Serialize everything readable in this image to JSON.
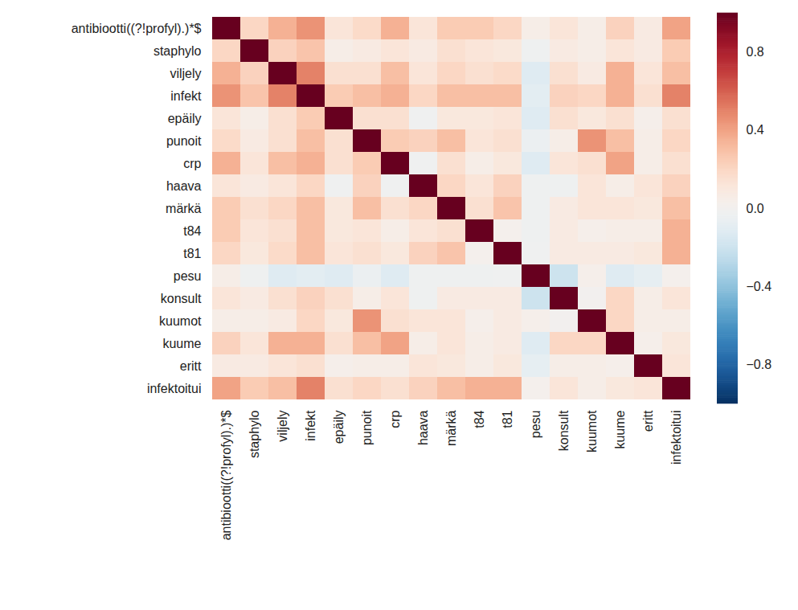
{
  "chart_data": {
    "type": "heatmap",
    "categories": [
      "antibiootti((?!profyl).)*$",
      "staphylo",
      "viljely",
      "infekt",
      "epäily",
      "punoit",
      "crp",
      "haava",
      "märkä",
      "t84",
      "t81",
      "pesu",
      "konsult",
      "kuumot",
      "kuume",
      "eritt",
      "infektoitui"
    ],
    "values": [
      [
        1,
        0.2,
        0.35,
        0.45,
        0.12,
        0.18,
        0.35,
        0.12,
        0.25,
        0.25,
        0.2,
        0.05,
        0.12,
        0.05,
        0.22,
        0.08,
        0.4
      ],
      [
        0.2,
        1,
        0.22,
        0.28,
        0.05,
        0.08,
        0.12,
        0.08,
        0.15,
        0.12,
        0.1,
        -0.03,
        0.08,
        0.05,
        0.12,
        0.08,
        0.25
      ],
      [
        0.35,
        0.22,
        1,
        0.5,
        0.15,
        0.15,
        0.3,
        0.12,
        0.2,
        0.15,
        0.18,
        -0.12,
        0.15,
        0.08,
        0.35,
        0.12,
        0.3
      ],
      [
        0.45,
        0.28,
        0.5,
        1,
        0.25,
        0.3,
        0.35,
        0.2,
        0.3,
        0.3,
        0.3,
        -0.1,
        0.22,
        0.2,
        0.35,
        0.15,
        0.5
      ],
      [
        0.12,
        0.05,
        0.15,
        0.25,
        1,
        0.15,
        0.15,
        -0.02,
        0.1,
        0.1,
        0.12,
        -0.12,
        0.15,
        0.1,
        0.15,
        0.03,
        0.15
      ],
      [
        0.18,
        0.08,
        0.15,
        0.3,
        0.15,
        1,
        0.25,
        0.22,
        0.3,
        0.12,
        0.15,
        -0.05,
        0.05,
        0.45,
        0.3,
        0.05,
        0.2
      ],
      [
        0.35,
        0.12,
        0.3,
        0.35,
        0.15,
        0.25,
        1,
        -0.02,
        0.15,
        0.05,
        0.1,
        -0.12,
        0.12,
        0.15,
        0.4,
        0.05,
        0.15
      ],
      [
        0.12,
        0.08,
        0.12,
        0.2,
        -0.02,
        0.22,
        -0.02,
        1,
        0.2,
        0.12,
        0.22,
        -0.03,
        -0.03,
        0.12,
        0.05,
        0.12,
        0.22
      ],
      [
        0.25,
        0.15,
        0.2,
        0.3,
        0.1,
        0.3,
        0.15,
        0.2,
        1,
        0.15,
        0.28,
        -0.03,
        0.08,
        0.12,
        0.12,
        0.1,
        0.3
      ],
      [
        0.25,
        0.12,
        0.15,
        0.3,
        0.1,
        0.12,
        0.05,
        0.12,
        0.15,
        1,
        0.02,
        -0.03,
        0.08,
        0.03,
        0.05,
        0.05,
        0.35
      ],
      [
        0.2,
        0.1,
        0.18,
        0.3,
        0.12,
        0.15,
        0.1,
        0.22,
        0.28,
        0.02,
        1,
        -0.02,
        0.08,
        0.08,
        0.08,
        0.1,
        0.35
      ],
      [
        0.05,
        -0.03,
        -0.12,
        -0.1,
        -0.12,
        -0.05,
        -0.12,
        -0.03,
        -0.03,
        -0.03,
        -0.02,
        1,
        -0.2,
        0.03,
        -0.12,
        -0.08,
        0.02
      ],
      [
        0.12,
        0.08,
        0.15,
        0.22,
        0.15,
        0.05,
        0.12,
        -0.03,
        0.08,
        0.08,
        0.08,
        -0.2,
        1,
        0.0,
        0.2,
        0.05,
        0.12
      ],
      [
        0.05,
        0.05,
        0.08,
        0.2,
        0.1,
        0.45,
        0.15,
        0.12,
        0.12,
        0.03,
        0.08,
        0.03,
        0.0,
        1,
        0.2,
        0.05,
        0.05
      ],
      [
        0.22,
        0.12,
        0.35,
        0.35,
        0.15,
        0.3,
        0.4,
        0.05,
        0.12,
        0.05,
        0.08,
        -0.12,
        0.2,
        0.2,
        1,
        0.03,
        0.1
      ],
      [
        0.08,
        0.08,
        0.12,
        0.15,
        0.03,
        0.05,
        0.05,
        0.12,
        0.1,
        0.05,
        0.1,
        -0.08,
        0.05,
        0.05,
        0.03,
        1,
        0.12
      ],
      [
        0.4,
        0.25,
        0.3,
        0.5,
        0.15,
        0.2,
        0.15,
        0.22,
        0.3,
        0.35,
        0.35,
        0.02,
        0.12,
        0.05,
        0.1,
        0.12,
        1
      ]
    ],
    "color": "RdBu_r",
    "colorbar_range": [
      -1,
      1
    ],
    "colorbar_ticks": [
      0.8,
      0.4,
      {
        "value": 0,
        "label": "0.0"
      },
      {
        "value": -0.4,
        "label": "−0.4"
      },
      {
        "value": -0.8,
        "label": "−0.8"
      }
    ]
  }
}
